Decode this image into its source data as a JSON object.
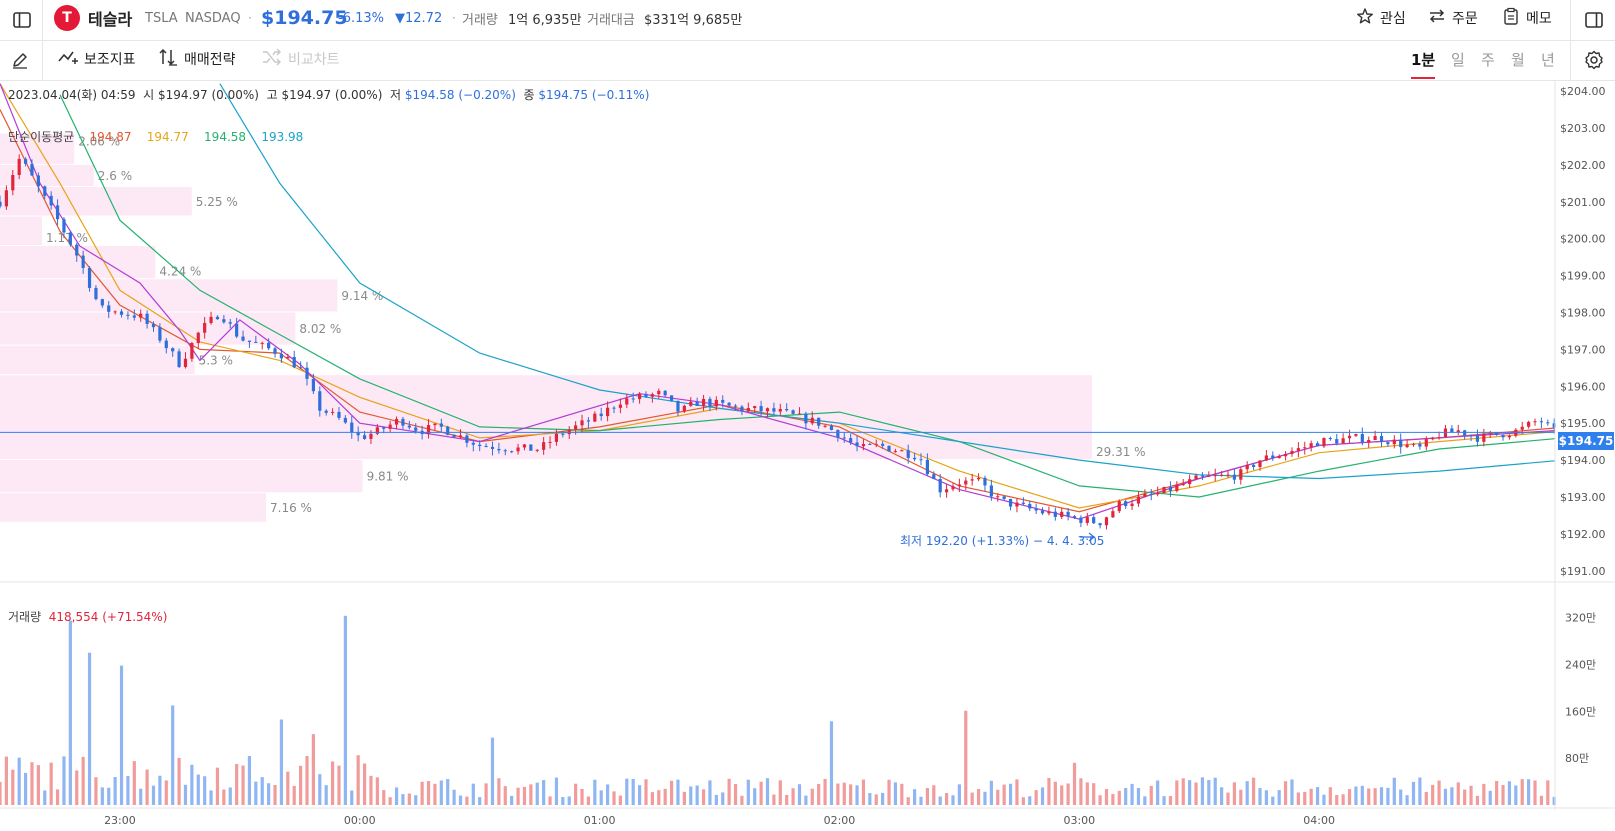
{
  "header": {
    "name": "테슬라",
    "ticker": "TSLA",
    "exchange": "NASDAQ",
    "price": "$194.75",
    "change_pct": "-6.13%",
    "change_abs": "▼12.72",
    "volume_label": "거래량",
    "volume_value": "1억 6,935만",
    "amount_label": "거래대금",
    "amount_value": "$331억 9,685만",
    "watch_label": "관심",
    "order_label": "주문",
    "memo_label": "메모"
  },
  "toolbar": {
    "indicator_label": "보조지표",
    "strategy_label": "매매전략",
    "compare_label": "비교차트",
    "periods": [
      "1분",
      "일",
      "주",
      "월",
      "년"
    ],
    "active_period": "1분"
  },
  "ohlc_info": {
    "datetime": "2023.04.04(화) 04:59",
    "open_label": "시",
    "open": "$194.97 (0.00%)",
    "high_label": "고",
    "high": "$194.97 (0.00%)",
    "low_label": "저",
    "low": "$194.58 (−0.20%)",
    "close_label": "종",
    "close": "$194.75 (−0.11%)"
  },
  "ma_legend": {
    "label": "단순이동평균",
    "values": [
      "194.87",
      "194.77",
      "194.58",
      "193.98"
    ],
    "colors": [
      "#e4572e",
      "#e8a317",
      "#23b26d",
      "#1aa3c8"
    ]
  },
  "volume_info": {
    "label": "거래량",
    "value": "418,554 (+71.54%)"
  },
  "annotations": {
    "low_marker": "최저 192.20 (+1.33%) − 4. 4. 3:05",
    "current_price_tag": "$194.75"
  },
  "colors": {
    "up": "#e0263b",
    "down": "#2f6fdb",
    "vol_up": "#f29b9b",
    "vol_down": "#8fb6f2",
    "accent_blue": "#2f80ed",
    "profile": "#fde8f6",
    "ma5": "#b23bd6",
    "ma10": "#e4572e",
    "ma20": "#e8a317",
    "ma60": "#23b26d",
    "ma120": "#1aa3c8"
  },
  "chart_data": {
    "type": "candlestick",
    "y_axis": {
      "ticks": [
        "$204.00",
        "$203.00",
        "$202.00",
        "$201.00",
        "$200.00",
        "$199.00",
        "$198.00",
        "$197.00",
        "$196.00",
        "$195.00",
        "$194.00",
        "$193.00",
        "$192.00",
        "$191.00"
      ],
      "range": [
        190.75,
        204.3
      ]
    },
    "x_axis": {
      "ticks": [
        "23:00",
        "00:00",
        "01:00",
        "02:00",
        "03:00",
        "04:00"
      ]
    },
    "volume_axis": {
      "ticks": [
        "320만",
        "240만",
        "160만",
        "80만"
      ],
      "range": [
        0,
        3500000
      ]
    },
    "price_path": [
      {
        "time": "22:30",
        "price": 201.0
      },
      {
        "time": "22:35",
        "price": 202.2
      },
      {
        "time": "22:45",
        "price": 200.4
      },
      {
        "time": "22:50",
        "price": 199.4
      },
      {
        "time": "22:55",
        "price": 198.1
      },
      {
        "time": "23:05",
        "price": 197.9
      },
      {
        "time": "23:10",
        "price": 197.3
      },
      {
        "time": "23:15",
        "price": 196.6
      },
      {
        "time": "23:20",
        "price": 197.5
      },
      {
        "time": "23:25",
        "price": 198.0
      },
      {
        "time": "23:30",
        "price": 197.3
      },
      {
        "time": "23:40",
        "price": 196.9
      },
      {
        "time": "23:45",
        "price": 196.5
      },
      {
        "time": "23:50",
        "price": 195.4
      },
      {
        "time": "23:55",
        "price": 195.1
      },
      {
        "time": "00:00",
        "price": 194.6
      },
      {
        "time": "00:05",
        "price": 194.8
      },
      {
        "time": "00:10",
        "price": 195.1
      },
      {
        "time": "00:15",
        "price": 194.8
      },
      {
        "time": "00:20",
        "price": 194.9
      },
      {
        "time": "00:30",
        "price": 194.4
      },
      {
        "time": "00:40",
        "price": 194.3
      },
      {
        "time": "00:45",
        "price": 194.3
      },
      {
        "time": "00:50",
        "price": 194.7
      },
      {
        "time": "01:00",
        "price": 195.2
      },
      {
        "time": "01:05",
        "price": 195.6
      },
      {
        "time": "01:15",
        "price": 195.8
      },
      {
        "time": "01:20",
        "price": 195.3
      },
      {
        "time": "01:25",
        "price": 195.6
      },
      {
        "time": "01:35",
        "price": 195.4
      },
      {
        "time": "01:45",
        "price": 195.3
      },
      {
        "time": "01:55",
        "price": 195.0
      },
      {
        "time": "02:00",
        "price": 194.7
      },
      {
        "time": "02:05",
        "price": 194.3
      },
      {
        "time": "02:10",
        "price": 194.4
      },
      {
        "time": "02:20",
        "price": 194.1
      },
      {
        "time": "02:25",
        "price": 193.2
      },
      {
        "time": "02:30",
        "price": 193.4
      },
      {
        "time": "02:35",
        "price": 193.4
      },
      {
        "time": "02:40",
        "price": 192.9
      },
      {
        "time": "02:50",
        "price": 192.6
      },
      {
        "time": "02:55",
        "price": 192.5
      },
      {
        "time": "03:00",
        "price": 192.4
      },
      {
        "time": "03:05",
        "price": 192.3
      },
      {
        "time": "03:10",
        "price": 192.8
      },
      {
        "time": "03:20",
        "price": 193.1
      },
      {
        "time": "03:30",
        "price": 193.5
      },
      {
        "time": "03:40",
        "price": 193.6
      },
      {
        "time": "03:45",
        "price": 194.0
      },
      {
        "time": "03:55",
        "price": 194.3
      },
      {
        "time": "04:00",
        "price": 194.5
      },
      {
        "time": "04:10",
        "price": 194.6
      },
      {
        "time": "04:15",
        "price": 194.6
      },
      {
        "time": "04:25",
        "price": 194.3
      },
      {
        "time": "04:30",
        "price": 194.7
      },
      {
        "time": "04:35",
        "price": 194.8
      },
      {
        "time": "04:40",
        "price": 194.6
      },
      {
        "time": "04:45",
        "price": 194.7
      },
      {
        "time": "04:50",
        "price": 194.8
      },
      {
        "time": "04:55",
        "price": 195.1
      },
      {
        "time": "04:59",
        "price": 194.75
      }
    ],
    "ma_lines": [
      {
        "name": "194.87",
        "values": [
          {
            "time": "22:30",
            "price": 203.5
          },
          {
            "time": "22:45",
            "price": 200.2
          },
          {
            "time": "23:00",
            "price": 198.2
          },
          {
            "time": "23:20",
            "price": 197.0
          },
          {
            "time": "23:40",
            "price": 196.9
          },
          {
            "time": "00:00",
            "price": 195.3
          },
          {
            "time": "00:30",
            "price": 194.5
          },
          {
            "time": "01:00",
            "price": 194.9
          },
          {
            "time": "01:30",
            "price": 195.5
          },
          {
            "time": "02:00",
            "price": 194.9
          },
          {
            "time": "02:30",
            "price": 193.3
          },
          {
            "time": "03:00",
            "price": 192.6
          },
          {
            "time": "03:30",
            "price": 193.5
          },
          {
            "time": "04:00",
            "price": 194.4
          },
          {
            "time": "04:30",
            "price": 194.6
          },
          {
            "time": "04:59",
            "price": 194.87
          }
        ]
      },
      {
        "name": "194.77",
        "values": [
          {
            "time": "22:30",
            "price": 204.2
          },
          {
            "time": "22:45",
            "price": 201.5
          },
          {
            "time": "23:00",
            "price": 198.6
          },
          {
            "time": "23:20",
            "price": 197.2
          },
          {
            "time": "23:40",
            "price": 196.7
          },
          {
            "time": "00:00",
            "price": 195.7
          },
          {
            "time": "00:30",
            "price": 194.6
          },
          {
            "time": "01:00",
            "price": 194.8
          },
          {
            "time": "01:30",
            "price": 195.4
          },
          {
            "time": "02:00",
            "price": 195.0
          },
          {
            "time": "02:30",
            "price": 193.7
          },
          {
            "time": "03:00",
            "price": 192.7
          },
          {
            "time": "03:30",
            "price": 193.3
          },
          {
            "time": "04:00",
            "price": 194.2
          },
          {
            "time": "04:30",
            "price": 194.5
          },
          {
            "time": "04:59",
            "price": 194.77
          }
        ]
      },
      {
        "name": "194.58",
        "values": [
          {
            "time": "22:45",
            "price": 203.9
          },
          {
            "time": "23:00",
            "price": 200.5
          },
          {
            "time": "23:20",
            "price": 198.6
          },
          {
            "time": "23:40",
            "price": 197.4
          },
          {
            "time": "00:00",
            "price": 196.2
          },
          {
            "time": "00:30",
            "price": 194.9
          },
          {
            "time": "01:00",
            "price": 194.8
          },
          {
            "time": "01:30",
            "price": 195.1
          },
          {
            "time": "02:00",
            "price": 195.3
          },
          {
            "time": "02:30",
            "price": 194.5
          },
          {
            "time": "03:00",
            "price": 193.3
          },
          {
            "time": "03:30",
            "price": 193.0
          },
          {
            "time": "04:00",
            "price": 193.7
          },
          {
            "time": "04:30",
            "price": 194.3
          },
          {
            "time": "04:59",
            "price": 194.58
          }
        ]
      },
      {
        "name": "193.98",
        "values": [
          {
            "time": "23:25",
            "price": 204.2
          },
          {
            "time": "23:40",
            "price": 201.5
          },
          {
            "time": "00:00",
            "price": 198.8
          },
          {
            "time": "00:30",
            "price": 196.9
          },
          {
            "time": "01:00",
            "price": 195.9
          },
          {
            "time": "01:30",
            "price": 195.4
          },
          {
            "time": "02:00",
            "price": 195.0
          },
          {
            "time": "02:30",
            "price": 194.5
          },
          {
            "time": "03:00",
            "price": 194.0
          },
          {
            "time": "03:30",
            "price": 193.6
          },
          {
            "time": "04:00",
            "price": 193.5
          },
          {
            "time": "04:30",
            "price": 193.7
          },
          {
            "time": "04:59",
            "price": 193.98
          }
        ]
      },
      {
        "name": "",
        "values": [
          {
            "time": "22:30",
            "price": 204.2
          },
          {
            "time": "22:40",
            "price": 201.5
          },
          {
            "time": "22:50",
            "price": 199.8
          },
          {
            "time": "23:05",
            "price": 198.8
          },
          {
            "time": "23:15",
            "price": 197.5
          },
          {
            "time": "23:20",
            "price": 196.7
          },
          {
            "time": "23:30",
            "price": 197.8
          },
          {
            "time": "23:45",
            "price": 196.6
          },
          {
            "time": "00:00",
            "price": 195.0
          },
          {
            "time": "00:30",
            "price": 194.5
          },
          {
            "time": "01:10",
            "price": 195.8
          },
          {
            "time": "01:30",
            "price": 195.5
          },
          {
            "time": "02:00",
            "price": 194.6
          },
          {
            "time": "02:30",
            "price": 193.2
          },
          {
            "time": "03:00",
            "price": 192.4
          },
          {
            "time": "03:30",
            "price": 193.5
          },
          {
            "time": "04:00",
            "price": 194.4
          },
          {
            "time": "04:59",
            "price": 194.8
          }
        ]
      }
    ],
    "volume_profile": [
      {
        "price_low": 202.0,
        "price_high": 202.85,
        "pct": "2.06 %",
        "label_pos": "top",
        "frac": 0.053
      },
      {
        "price_low": 201.4,
        "price_high": 202.0,
        "pct": "2.6 %",
        "label_pos": "mid",
        "frac": 0.067
      },
      {
        "price_low": 200.6,
        "price_high": 201.4,
        "pct": "5.25 %",
        "label_pos": "mid",
        "frac": 0.137
      },
      {
        "price_low": 199.8,
        "price_high": 200.6,
        "pct": "1.17 %",
        "label_pos": "bottom",
        "frac": 0.03
      },
      {
        "price_low": 198.9,
        "price_high": 199.8,
        "pct": "4.24 %",
        "label_pos": "bottom",
        "frac": 0.111
      },
      {
        "price_low": 198.0,
        "price_high": 198.9,
        "pct": "9.14 %",
        "label_pos": "mid",
        "frac": 0.241
      },
      {
        "price_low": 197.1,
        "price_high": 198.0,
        "pct": "8.02 %",
        "label_pos": "mid",
        "frac": 0.211
      },
      {
        "price_low": 196.3,
        "price_high": 197.1,
        "pct": "5.3 %",
        "label_pos": "mid",
        "frac": 0.139
      },
      {
        "price_low": 194.0,
        "price_high": 196.3,
        "pct": "29.31 %",
        "label_pos": "bottom",
        "frac": 0.78
      },
      {
        "price_low": 193.1,
        "price_high": 194.0,
        "pct": "9.81 %",
        "label_pos": "mid",
        "frac": 0.259
      },
      {
        "price_low": 192.3,
        "price_high": 193.1,
        "pct": "7.16 %",
        "label_pos": "mid",
        "frac": 0.19
      }
    ],
    "volume_peaks": [
      {
        "time": "22:47",
        "value": 3150000,
        "dir": "down"
      },
      {
        "time": "22:52",
        "value": 2600000,
        "dir": "down"
      },
      {
        "time": "23:01",
        "value": 2380000,
        "dir": "down"
      },
      {
        "time": "23:13",
        "value": 1700000,
        "dir": "down"
      },
      {
        "time": "23:40",
        "value": 1460000,
        "dir": "down"
      },
      {
        "time": "23:49",
        "value": 1210000,
        "dir": "up"
      },
      {
        "time": "23:57",
        "value": 3230000,
        "dir": "down"
      },
      {
        "time": "00:33",
        "value": 1150000,
        "dir": "down"
      },
      {
        "time": "01:58",
        "value": 1430000,
        "dir": "down"
      },
      {
        "time": "02:32",
        "value": 1610000,
        "dir": "up"
      },
      {
        "time": "02:59",
        "value": 720000,
        "dir": "up"
      },
      {
        "time": "04:54",
        "value": 418554,
        "dir": "up"
      }
    ]
  }
}
